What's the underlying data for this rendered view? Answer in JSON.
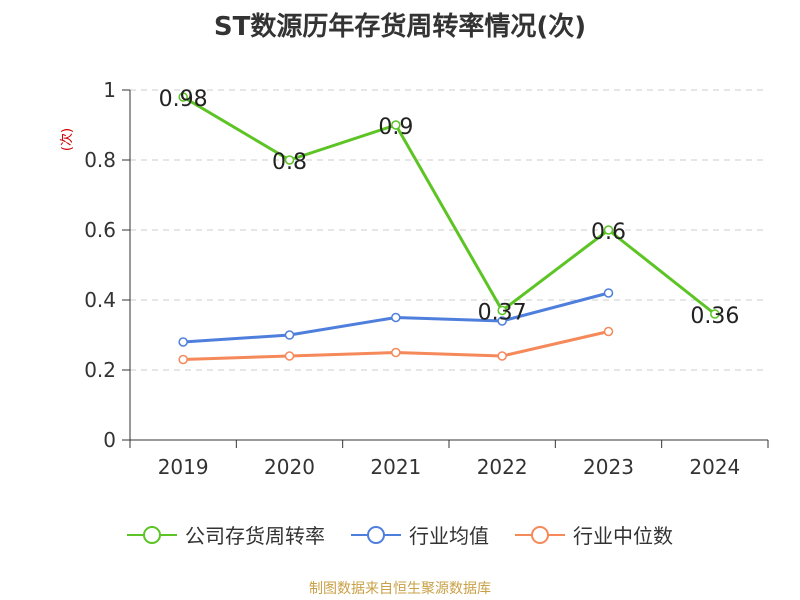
{
  "chart_data": {
    "type": "line",
    "title": "ST数源历年存货周转率情况(次)",
    "ylabel": "(次)",
    "xlabel": "",
    "categories": [
      "2019",
      "2020",
      "2021",
      "2022",
      "2023",
      "2024"
    ],
    "ylim": [
      0,
      1
    ],
    "yticks": [
      "0",
      "0.2",
      "0.4",
      "0.6",
      "0.8",
      "1"
    ],
    "grid": true,
    "legend_position": "bottom",
    "series": [
      {
        "name": "公司存货周转率",
        "color": "#5cc424",
        "values": [
          0.98,
          0.8,
          0.9,
          0.37,
          0.6,
          0.36
        ],
        "labels": [
          "0.98",
          "0.8",
          "0.9",
          "0.37",
          "0.6",
          "0.36"
        ]
      },
      {
        "name": "行业均值",
        "color": "#4f7fdc",
        "values": [
          0.28,
          0.3,
          0.35,
          0.34,
          0.42,
          null
        ]
      },
      {
        "name": "行业中位数",
        "color": "#f5895a",
        "values": [
          0.23,
          0.24,
          0.25,
          0.24,
          0.31,
          null
        ]
      }
    ]
  },
  "source": "制图数据来自恒生聚源数据库"
}
